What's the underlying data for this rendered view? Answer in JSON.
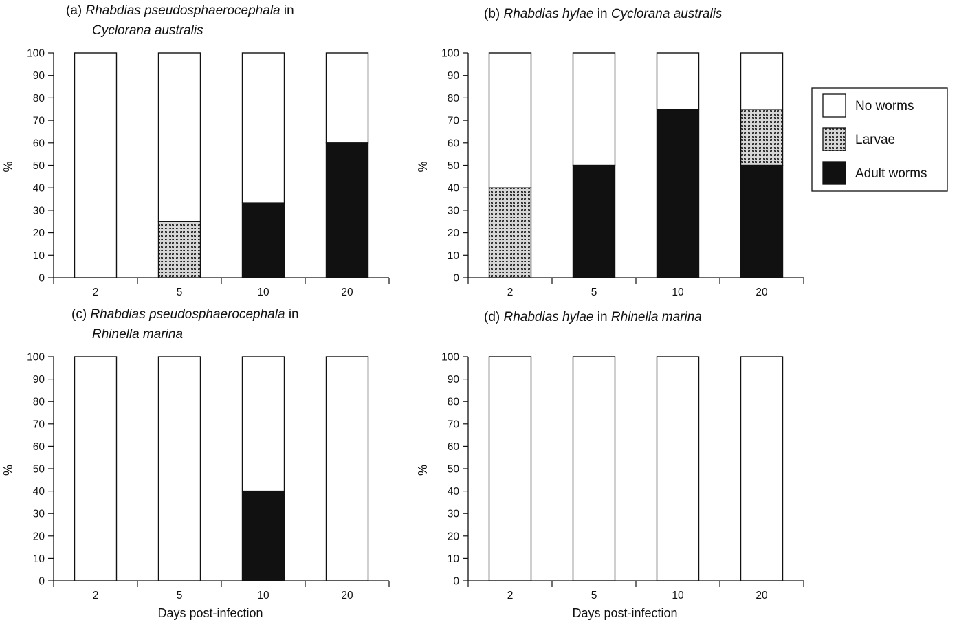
{
  "colors": {
    "no_worms": "#ffffff",
    "larvae": "#9a9a9a",
    "adult_worms": "#111111",
    "axis": "#111111"
  },
  "legend": {
    "items": [
      {
        "key": "no_worms",
        "label": "No worms",
        "fill": "none"
      },
      {
        "key": "larvae",
        "label": "Larvae",
        "fill": "stipple"
      },
      {
        "key": "adult_worms",
        "label": "Adult worms",
        "fill": "solid"
      }
    ]
  },
  "chart_data": [
    {
      "type": "bar",
      "stacked": true,
      "title_prefix": "(a) ",
      "title_parts": [
        [
          {
            "text": "Rhabdias pseudosphaerocephala",
            "italic": true
          },
          {
            "text": " in",
            "italic": false
          }
        ],
        [
          {
            "text": "Cyclorana australis",
            "italic": true
          }
        ]
      ],
      "categories": [
        "2",
        "5",
        "10",
        "20"
      ],
      "series": [
        {
          "name": "Adult worms",
          "values": [
            0,
            0,
            33.3,
            60
          ]
        },
        {
          "name": "Larvae",
          "values": [
            0,
            25,
            0,
            0
          ]
        },
        {
          "name": "No worms",
          "values": [
            100,
            75,
            66.7,
            40
          ]
        }
      ],
      "ylim": [
        0,
        100
      ],
      "yticks": [
        "0",
        "10",
        "20",
        "30",
        "40",
        "50",
        "60",
        "70",
        "80",
        "90",
        "100"
      ],
      "ylabel": "%",
      "xlabel": ""
    },
    {
      "type": "bar",
      "stacked": true,
      "title_prefix": "(b) ",
      "title_parts": [
        [
          {
            "text": "Rhabdias hylae",
            "italic": true
          },
          {
            "text": " in ",
            "italic": false
          },
          {
            "text": "Cyclorana australis",
            "italic": true
          }
        ]
      ],
      "categories": [
        "2",
        "5",
        "10",
        "20"
      ],
      "series": [
        {
          "name": "Adult worms",
          "values": [
            0,
            50,
            75,
            50
          ]
        },
        {
          "name": "Larvae",
          "values": [
            40,
            0,
            0,
            25
          ]
        },
        {
          "name": "No worms",
          "values": [
            60,
            50,
            25,
            25
          ]
        }
      ],
      "ylim": [
        0,
        100
      ],
      "yticks": [
        "0",
        "10",
        "20",
        "30",
        "40",
        "50",
        "60",
        "70",
        "80",
        "90",
        "100"
      ],
      "ylabel": "%",
      "xlabel": ""
    },
    {
      "type": "bar",
      "stacked": true,
      "title_prefix": "(c) ",
      "title_parts": [
        [
          {
            "text": "Rhabdias pseudosphaerocephala",
            "italic": true
          },
          {
            "text": " in",
            "italic": false
          }
        ],
        [
          {
            "text": "Rhinella marina",
            "italic": true
          }
        ]
      ],
      "categories": [
        "2",
        "5",
        "10",
        "20"
      ],
      "series": [
        {
          "name": "Adult worms",
          "values": [
            0,
            0,
            40,
            0
          ]
        },
        {
          "name": "Larvae",
          "values": [
            0,
            0,
            0,
            0
          ]
        },
        {
          "name": "No worms",
          "values": [
            100,
            100,
            60,
            100
          ]
        }
      ],
      "ylim": [
        0,
        100
      ],
      "yticks": [
        "0",
        "10",
        "20",
        "30",
        "40",
        "50",
        "60",
        "70",
        "80",
        "90",
        "100"
      ],
      "ylabel": "%",
      "xlabel": "Days post-infection"
    },
    {
      "type": "bar",
      "stacked": true,
      "title_prefix": "(d) ",
      "title_parts": [
        [
          {
            "text": "Rhabdias hylae",
            "italic": true
          },
          {
            "text": " in ",
            "italic": false
          },
          {
            "text": "Rhinella marina",
            "italic": true
          }
        ]
      ],
      "categories": [
        "2",
        "5",
        "10",
        "20"
      ],
      "series": [
        {
          "name": "Adult worms",
          "values": [
            0,
            0,
            0,
            0
          ]
        },
        {
          "name": "Larvae",
          "values": [
            0,
            0,
            0,
            0
          ]
        },
        {
          "name": "No worms",
          "values": [
            100,
            100,
            100,
            100
          ]
        }
      ],
      "ylim": [
        0,
        100
      ],
      "yticks": [
        "0",
        "10",
        "20",
        "30",
        "40",
        "50",
        "60",
        "70",
        "80",
        "90",
        "100"
      ],
      "ylabel": "%",
      "xlabel": "Days post-infection"
    }
  ]
}
